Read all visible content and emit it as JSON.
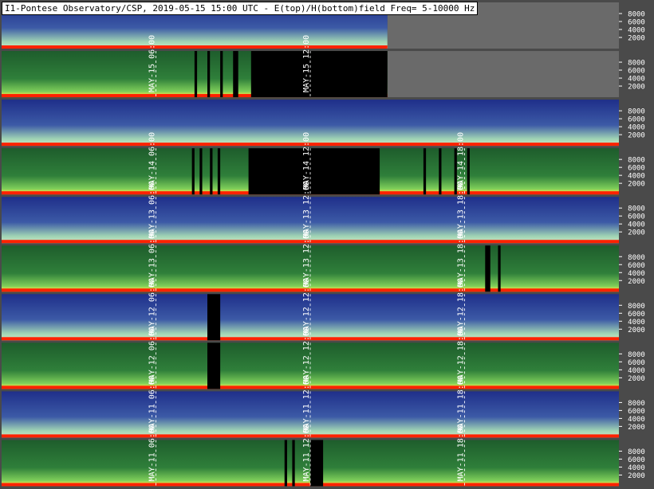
{
  "title": "I1-Pontese Observatory/CSP, 2019-05-15 15:00 UTC - E(top)/H(bottom)field Freq= 5-10000 Hz",
  "colors": {
    "background": "#4a4a4a",
    "empty": "#6a6a6a",
    "e_field_low": "#1f2f8a",
    "e_field_high": "#cfe9c6",
    "h_field": "#2f7f3a",
    "baseline": "#ff2200",
    "gap": "#000000",
    "gridline": "#ffffff"
  },
  "chart_data": {
    "type": "heatmap",
    "title": "I1-Pontese Observatory/CSP, 2019-05-15 15:00 UTC - E(top)/H(bottom)field Freq= 5-10000 Hz",
    "y_axis": {
      "label": "",
      "ticks": [
        2000,
        4000,
        6000,
        8000
      ],
      "range": [
        5,
        10000
      ],
      "unit": "Hz"
    },
    "x_axis": {
      "range": [
        "00:00",
        "24:00"
      ],
      "unit": "UTC"
    },
    "days": [
      {
        "date": "2019-05-15",
        "data_until": "15:00",
        "e_field_panel": {
          "labels": [],
          "gaps": []
        },
        "h_field_panel": {
          "labels": [
            "MAY-15 06:00",
            "MAY-15 12:00"
          ],
          "gaps": [
            [
              "07:30",
              "07:36"
            ],
            [
              "08:00",
              "08:06"
            ],
            [
              "08:30",
              "08:36"
            ],
            [
              "09:00",
              "09:12"
            ],
            [
              "09:42",
              "15:00"
            ]
          ]
        }
      },
      {
        "date": "2019-05-14",
        "data_until": "24:00",
        "e_field_panel": {
          "labels": [],
          "gaps": []
        },
        "h_field_panel": {
          "labels": [
            "MAY-14 06:00",
            "MAY-14 12:00",
            "MAY-14 18:00"
          ],
          "gaps": [
            [
              "07:24",
              "07:30"
            ],
            [
              "07:42",
              "07:48"
            ],
            [
              "08:06",
              "08:12"
            ],
            [
              "08:24",
              "08:30"
            ],
            [
              "09:36",
              "14:42"
            ],
            [
              "16:24",
              "16:30"
            ],
            [
              "17:00",
              "17:06"
            ],
            [
              "17:36",
              "17:42"
            ],
            [
              "18:06",
              "18:12"
            ]
          ]
        }
      },
      {
        "date": "2019-05-13",
        "data_until": "24:00",
        "e_field_panel": {
          "labels": [
            "MAY-13 06:00",
            "MAY-13 12:00",
            "MAY-13 18:00"
          ],
          "gaps": []
        },
        "h_field_panel": {
          "labels": [
            "MAY-13 06:00",
            "MAY-13 12:00",
            "MAY-13 18:00"
          ],
          "gaps": [
            [
              "18:48",
              "19:00"
            ],
            [
              "19:18",
              "19:24"
            ]
          ]
        }
      },
      {
        "date": "2019-05-12",
        "data_until": "24:00",
        "e_field_panel": {
          "labels": [
            "MAY-12 06:00",
            "MAY-12 12:00",
            "MAY-12 18:00"
          ],
          "gaps": [
            [
              "08:00",
              "08:30"
            ]
          ]
        },
        "h_field_panel": {
          "labels": [
            "MAY-12 06:00",
            "MAY-12 12:00",
            "MAY-12 18:00"
          ],
          "gaps": [
            [
              "08:00",
              "08:30"
            ]
          ]
        }
      },
      {
        "date": "2019-05-11",
        "data_until": "24:00",
        "e_field_panel": {
          "labels": [
            "MAY-11 06:00",
            "MAY-11 12:00",
            "MAY-11 18:00"
          ],
          "gaps": []
        },
        "h_field_panel": {
          "labels": [
            "MAY-11 06:00",
            "MAY-11 12:00",
            "MAY-11 18:00"
          ],
          "gaps": [
            [
              "11:00",
              "11:06"
            ],
            [
              "11:18",
              "11:24"
            ],
            [
              "12:00",
              "12:30"
            ]
          ]
        }
      }
    ]
  }
}
